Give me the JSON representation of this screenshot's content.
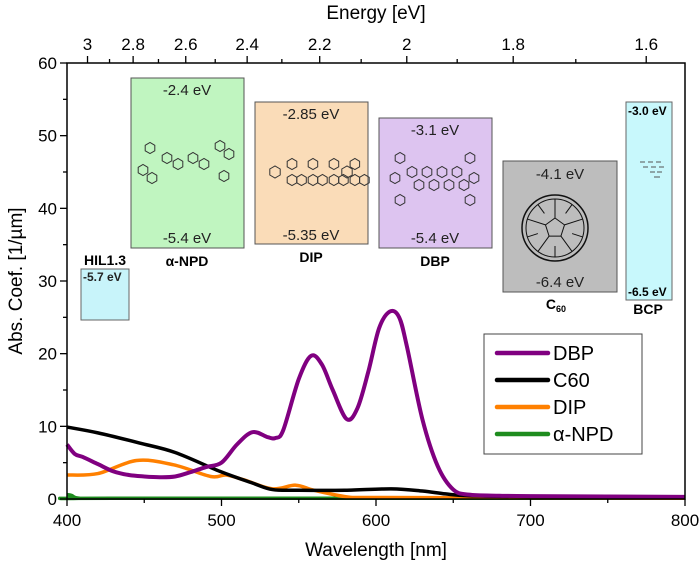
{
  "chart_data": {
    "type": "line",
    "xlabel": "Wavelength [nm]",
    "ylabel": "Abs. Coef. [1/µm]",
    "top_axis_label": "Energy [eV]",
    "xlim": [
      400,
      800
    ],
    "ylim": [
      0,
      60
    ],
    "x_ticks": [
      400,
      500,
      600,
      700,
      800
    ],
    "y_ticks": [
      0,
      10,
      20,
      30,
      40,
      50,
      60
    ],
    "top_ticks_eV": [
      "3",
      "2.8",
      "2.6",
      "2.4",
      "2.2",
      "2",
      "1.8",
      "1.6"
    ],
    "grid": false,
    "legend_position": "center-right",
    "series": [
      {
        "name": "DBP",
        "color": "#800080",
        "x": [
          400,
          405,
          410,
          420,
          430,
          440,
          450,
          460,
          470,
          480,
          490,
          500,
          510,
          520,
          530,
          535,
          540,
          550,
          558,
          565,
          572,
          581,
          588,
          595,
          602,
          609,
          615,
          620,
          630,
          640,
          650,
          660,
          680,
          700,
          800
        ],
        "y": [
          7.5,
          6.2,
          5.8,
          4.8,
          3.8,
          3.3,
          3.1,
          3.0,
          3.1,
          3.7,
          4.4,
          5.0,
          7.5,
          9.2,
          8.5,
          8.4,
          9.5,
          16.5,
          19.7,
          18.5,
          15,
          11,
          12.5,
          17.5,
          23.5,
          25.8,
          25,
          21,
          11,
          4.5,
          1.3,
          0.6,
          0.45,
          0.4,
          0.3
        ]
      },
      {
        "name": "C60",
        "color": "#000000",
        "x": [
          400,
          420,
          447,
          470,
          499,
          520,
          533,
          550,
          580,
          610,
          630,
          645,
          660,
          700,
          800
        ],
        "y": [
          9.9,
          9.1,
          7.7,
          6.4,
          3.8,
          2.2,
          1.3,
          1.2,
          1.2,
          1.4,
          1.1,
          0.7,
          0.45,
          0.35,
          0.3
        ]
      },
      {
        "name": "DIP",
        "color": "#ff8000",
        "x": [
          400,
          420,
          445,
          469,
          493,
          503,
          515,
          533,
          548,
          560,
          581,
          600,
          700,
          800
        ],
        "y": [
          3.3,
          3.5,
          5.3,
          4.7,
          3.1,
          3.3,
          2.6,
          1.4,
          1.9,
          1.2,
          0.3,
          0.2,
          0.15,
          0.1
        ]
      },
      {
        "name": "α-NPD",
        "color": "#1e8c1e",
        "x": [
          400,
          403,
          408,
          430,
          800
        ],
        "y": [
          0.6,
          0.5,
          0.1,
          0.1,
          0.1
        ]
      }
    ]
  },
  "energy_levels": [
    {
      "name": "HIL1.3",
      "homo": "-5.7 eV",
      "fill": "#c8f4fa"
    },
    {
      "name": "α-NPD",
      "lumo": "-2.4 eV",
      "homo": "-5.4 eV",
      "fill": "#c0f5c0"
    },
    {
      "name": "DIP",
      "lumo": "-2.85 eV",
      "homo": "-5.35 eV",
      "fill": "#fadcb8"
    },
    {
      "name": "DBP",
      "lumo": "-3.1 eV",
      "homo": "-5.4 eV",
      "fill": "#ddc4f0"
    },
    {
      "name": "C",
      "name_sub": "60",
      "lumo": "-4.1 eV",
      "homo": "-6.4 eV",
      "fill": "#bdbdbd"
    },
    {
      "name": "BCP",
      "lumo": "-3.0 eV",
      "homo": "-6.5 eV",
      "fill": "#c8f8fc"
    }
  ]
}
